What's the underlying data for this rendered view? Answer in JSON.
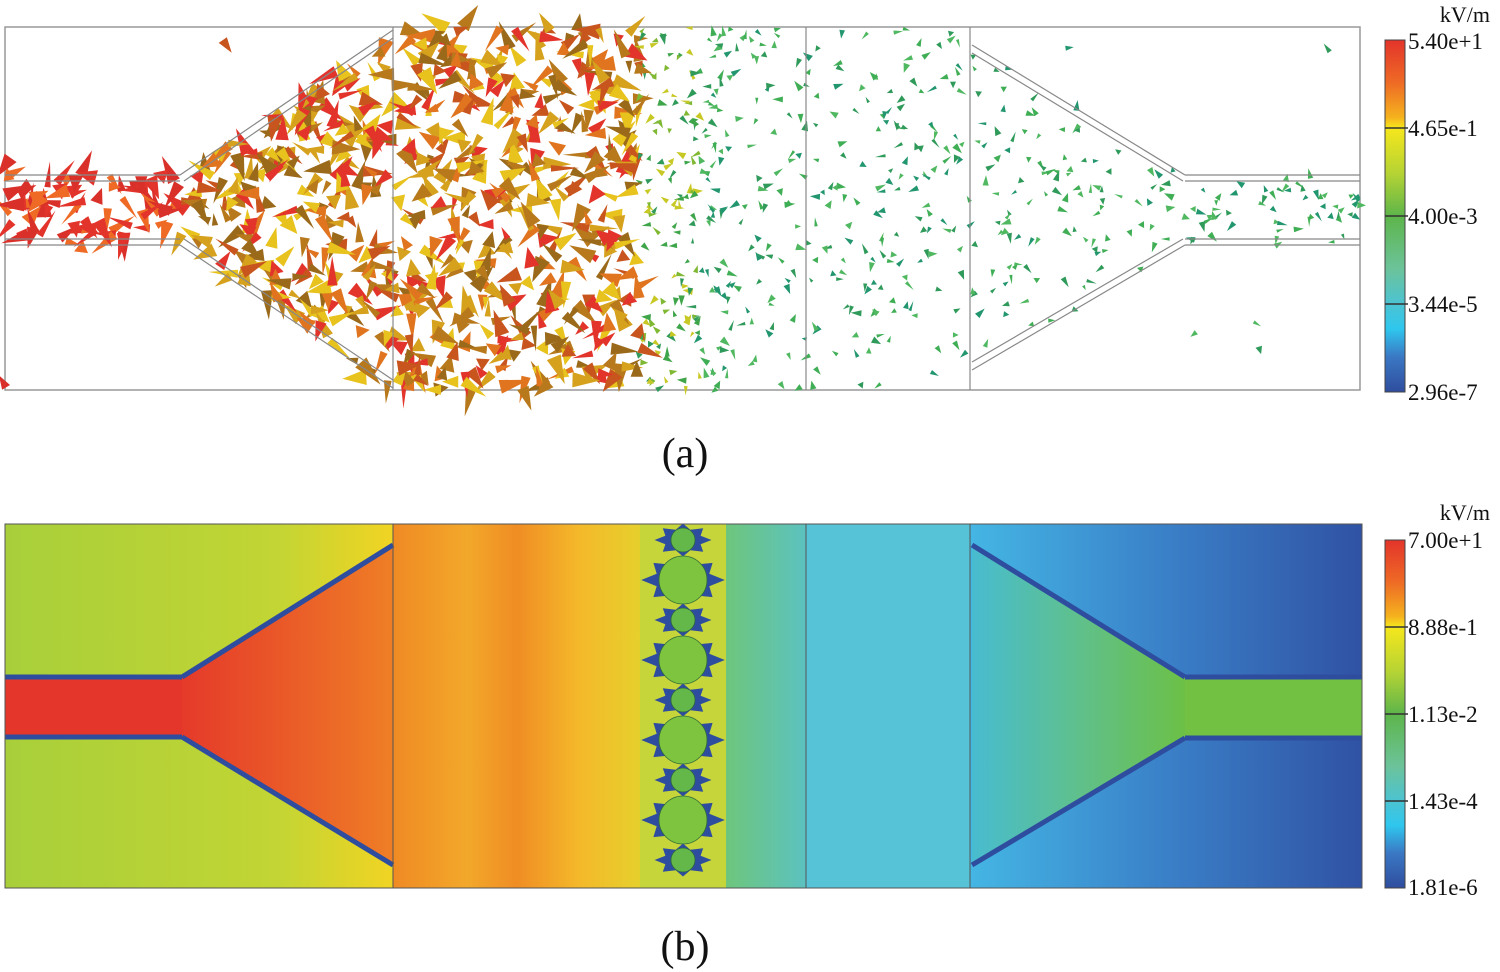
{
  "panels": [
    {
      "caption": "(a)",
      "colorbar": {
        "unit": "kV/m",
        "ticks": [
          "5.40e+1",
          "4.65e-1",
          "4.00e-3",
          "3.44e-5",
          "2.96e-7"
        ]
      },
      "visualization": "arrow-field"
    },
    {
      "caption": "(b)",
      "colorbar": {
        "unit": "kV/m",
        "ticks": [
          "7.00e+1",
          "8.88e-1",
          "1.13e-2",
          "1.43e-4",
          "1.81e-6"
        ]
      },
      "visualization": "color-map"
    }
  ],
  "colors": {
    "red": "#e3342b",
    "orange": "#f29a22",
    "yellow": "#f6e71c",
    "green": "#5db54a",
    "cyan": "#2fc7ee",
    "blue": "#2f4d9e"
  }
}
